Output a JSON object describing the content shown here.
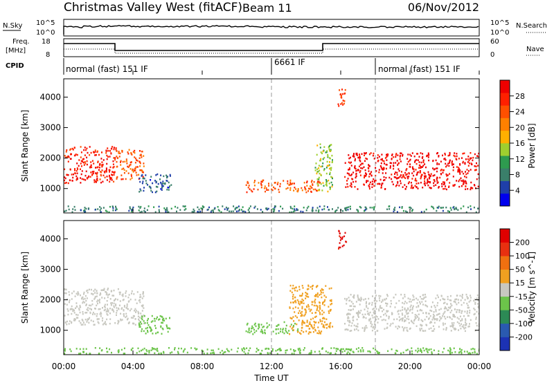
{
  "header": {
    "title": "Christmas Valley West (fitACF)",
    "beam": "Beam 11",
    "date": "06/Nov/2012"
  },
  "meta_panels": {
    "nsky_label": "N.Sky",
    "nsky_ticks": [
      "10^5",
      "10^0"
    ],
    "nsearch_label": "N.Search",
    "nsearch_ticks": [
      "10^5",
      "10^0"
    ],
    "freq_label": "Freq.",
    "freq_unit": "[MHz]",
    "freq_ticks": [
      "18",
      "8"
    ],
    "nave_label": "Nave",
    "nave_ticks": [
      "60",
      "0"
    ],
    "cpid_label": "CPID",
    "cpid_segments": [
      {
        "label": "normal (fast) 151 IF",
        "start_hour": 0,
        "end_hour": 12
      },
      {
        "label": "6661 IF",
        "start_hour": 12,
        "end_hour": 18
      },
      {
        "label": "normal (fast) 151 IF",
        "start_hour": 18,
        "end_hour": 24
      }
    ]
  },
  "x_axis": {
    "label": "Time UT",
    "ticks": [
      "00:00",
      "04:00",
      "08:00",
      "12:00",
      "16:00",
      "20:00",
      "00:00"
    ]
  },
  "power_colorbar": {
    "label": "Power [dB]",
    "ticks": [
      "4",
      "8",
      "12",
      "16",
      "20",
      "24",
      "28"
    ],
    "colors": [
      "#0000ee",
      "#1f3fa8",
      "#3a7f6a",
      "#2e9b4f",
      "#9fcf2f",
      "#ffb000",
      "#ff8000",
      "#ff5000",
      "#ff2000",
      "#ee0000"
    ]
  },
  "velocity_colorbar": {
    "label": "Velocity [m s^-1]",
    "ticks": [
      "200",
      "100",
      "50",
      "15",
      "-15",
      "-50",
      "-100",
      "-200"
    ],
    "colors": [
      "#1c32b4",
      "#2a5ab0",
      "#2c8a55",
      "#6cc44a",
      "#c8c8c0",
      "#f0a020",
      "#f07010",
      "#e83010",
      "#e00000"
    ]
  },
  "chart_data": [
    {
      "type": "heatmap",
      "name": "Power",
      "ylabel": "Slant Range [km]",
      "xlabel": "Time UT",
      "xlim": [
        0,
        24
      ],
      "ylim": [
        200,
        4600
      ],
      "y_ticks": [
        1000,
        2000,
        3000,
        4000
      ],
      "colorbar_range": [
        0,
        32
      ],
      "echo_regions": [
        {
          "t0": 0.0,
          "t1": 3.0,
          "r0": 1200,
          "r1": 2400,
          "value": 28
        },
        {
          "t0": 3.0,
          "t1": 4.6,
          "r0": 1300,
          "r1": 2300,
          "value": 24
        },
        {
          "t0": 4.3,
          "t1": 6.2,
          "r0": 900,
          "r1": 1500,
          "value": 6
        },
        {
          "t0": 10.5,
          "t1": 14.8,
          "r0": 900,
          "r1": 1300,
          "value": 24
        },
        {
          "t0": 14.5,
          "t1": 15.5,
          "r0": 900,
          "r1": 2500,
          "value": 14
        },
        {
          "t0": 15.8,
          "t1": 16.3,
          "r0": 3700,
          "r1": 4300,
          "value": 26
        },
        {
          "t0": 16.2,
          "t1": 24.0,
          "r0": 1000,
          "r1": 2200,
          "value": 30
        },
        {
          "t0": 0.0,
          "t1": 24.0,
          "r0": 250,
          "r1": 450,
          "value": 8
        }
      ]
    },
    {
      "type": "heatmap",
      "name": "Velocity",
      "ylabel": "Slant Range [km]",
      "xlabel": "Time UT",
      "xlim": [
        0,
        24
      ],
      "ylim": [
        200,
        4600
      ],
      "y_ticks": [
        1000,
        2000,
        3000,
        4000
      ],
      "colorbar_range": [
        -250,
        250
      ],
      "echo_regions": [
        {
          "t0": 0.0,
          "t1": 4.6,
          "r0": 1200,
          "r1": 2400,
          "value": 0
        },
        {
          "t0": 4.3,
          "t1": 6.2,
          "r0": 900,
          "r1": 1500,
          "value": -60
        },
        {
          "t0": 10.5,
          "t1": 13.5,
          "r0": 900,
          "r1": 1300,
          "value": -60
        },
        {
          "t0": 13.0,
          "t1": 15.5,
          "r0": 900,
          "r1": 2500,
          "value": 60
        },
        {
          "t0": 15.8,
          "t1": 16.3,
          "r0": 3700,
          "r1": 4300,
          "value": 210
        },
        {
          "t0": 16.2,
          "t1": 24.0,
          "r0": 1000,
          "r1": 2200,
          "value": 0
        },
        {
          "t0": 0.0,
          "t1": 24.0,
          "r0": 250,
          "r1": 450,
          "value": -60
        }
      ]
    }
  ]
}
